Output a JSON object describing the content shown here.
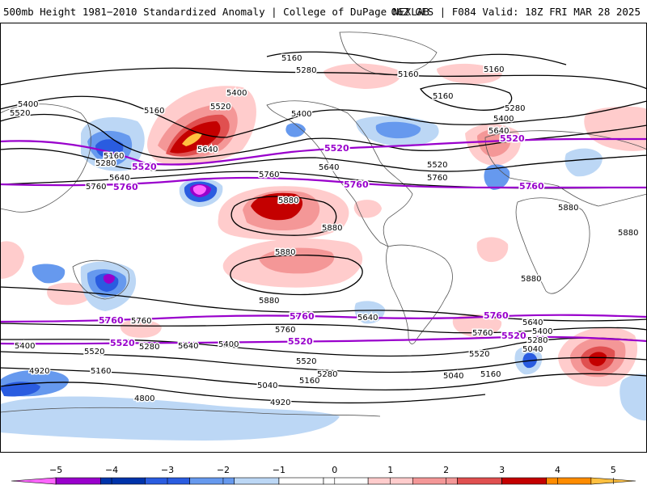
{
  "header": {
    "title_left": "500mb Height 1981−2010 Standardized Anomaly | College of DuPage NEXLAB",
    "title_right": "06Z GFS | F084 Valid: 18Z FRI MAR 28 2025"
  },
  "colorbar": {
    "ticks": [
      "−5",
      "−4",
      "−3",
      "−2",
      "−1",
      "0",
      "1",
      "2",
      "3",
      "4",
      "5"
    ],
    "colors": [
      "#ff66ff",
      "#9900cc",
      "#0033aa",
      "#2a5ce0",
      "#6699ee",
      "#bcd7f5",
      "#ffffff",
      "#ffffff",
      "#ffcccc",
      "#f49797",
      "#e05050",
      "#c40000",
      "#ff8c00",
      "#ffc040"
    ]
  },
  "contour_labels": [
    {
      "id": "5160-a",
      "text": "5160"
    },
    {
      "id": "5280-a",
      "text": "5280"
    },
    {
      "id": "5160-b",
      "text": "5160"
    },
    {
      "id": "5160-c",
      "text": "5160"
    },
    {
      "id": "5160-d",
      "text": "5160"
    },
    {
      "id": "5400-a",
      "text": "5400"
    },
    {
      "id": "5520-a",
      "text": "5520"
    },
    {
      "id": "5160-e",
      "text": "5160"
    },
    {
      "id": "5400-b",
      "text": "5400"
    },
    {
      "id": "5520-b",
      "text": "5520"
    },
    {
      "id": "5400-c",
      "text": "5400"
    },
    {
      "id": "5280-b",
      "text": "5280"
    },
    {
      "id": "5400-d",
      "text": "5400"
    },
    {
      "id": "5640-a",
      "text": "5640"
    },
    {
      "id": "5640-b",
      "text": "5640"
    },
    {
      "id": "5160-f",
      "text": "5160"
    },
    {
      "id": "5280-c",
      "text": "5280"
    },
    {
      "id": "5640-c",
      "text": "5640"
    },
    {
      "id": "5760-a",
      "text": "5760"
    },
    {
      "id": "5640-d",
      "text": "5640"
    },
    {
      "id": "5520-c",
      "text": "5520"
    },
    {
      "id": "5760-b",
      "text": "5760"
    },
    {
      "id": "5760-c",
      "text": "5760"
    },
    {
      "id": "5880-a",
      "text": "5880"
    },
    {
      "id": "5880-b",
      "text": "5880"
    },
    {
      "id": "5880-c",
      "text": "5880"
    },
    {
      "id": "5880-d",
      "text": "5880"
    },
    {
      "id": "5880-e",
      "text": "5880"
    },
    {
      "id": "5880-f",
      "text": "5880"
    },
    {
      "id": "5880-g",
      "text": "5880"
    },
    {
      "id": "5760-d",
      "text": "5760"
    },
    {
      "id": "5640-e",
      "text": "5640"
    },
    {
      "id": "5760-e",
      "text": "5760"
    },
    {
      "id": "5760-f",
      "text": "5760"
    },
    {
      "id": "5640-f",
      "text": "5640"
    },
    {
      "id": "5400-e",
      "text": "5400"
    },
    {
      "id": "5040-a",
      "text": "5040"
    },
    {
      "id": "5280-d",
      "text": "5280"
    },
    {
      "id": "5400-f",
      "text": "5400"
    },
    {
      "id": "5520-d",
      "text": "5520"
    },
    {
      "id": "5280-e",
      "text": "5280"
    },
    {
      "id": "5640-g",
      "text": "5640"
    },
    {
      "id": "5400-g",
      "text": "5400"
    },
    {
      "id": "5520-e",
      "text": "5520"
    },
    {
      "id": "5520-f",
      "text": "5520"
    },
    {
      "id": "4920-a",
      "text": "4920"
    },
    {
      "id": "5160-g",
      "text": "5160"
    },
    {
      "id": "5280-f",
      "text": "5280"
    },
    {
      "id": "5160-h",
      "text": "5160"
    },
    {
      "id": "5040-b",
      "text": "5040"
    },
    {
      "id": "5040-c",
      "text": "5040"
    },
    {
      "id": "5160-i",
      "text": "5160"
    },
    {
      "id": "4800-a",
      "text": "4800"
    },
    {
      "id": "4920-b",
      "text": "4920"
    }
  ],
  "reference_labels": [
    {
      "id": "r5520-a",
      "text": "5520"
    },
    {
      "id": "r5520-b",
      "text": "5520"
    },
    {
      "id": "r5520-c",
      "text": "5520"
    },
    {
      "id": "r5760-a",
      "text": "5760"
    },
    {
      "id": "r5760-b",
      "text": "5760"
    },
    {
      "id": "r5760-c",
      "text": "5760"
    },
    {
      "id": "r5760-d",
      "text": "5760"
    },
    {
      "id": "r5760-e",
      "text": "5760"
    },
    {
      "id": "r5760-f",
      "text": "5760"
    },
    {
      "id": "r5520-d",
      "text": "5520"
    },
    {
      "id": "r5520-e",
      "text": "5520"
    },
    {
      "id": "r5520-f",
      "text": "5520"
    }
  ]
}
